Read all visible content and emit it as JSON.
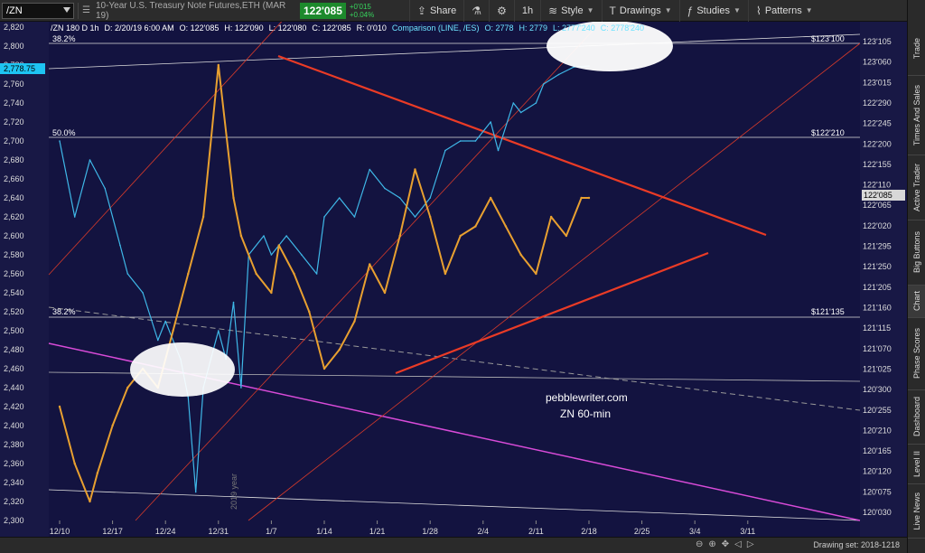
{
  "toolbar": {
    "symbol": "/ZN",
    "description": "10-Year U.S. Treasury Note Futures,ETH (MAR 19)",
    "last_price": "122'085",
    "change_abs": "+0'015",
    "change_pct": "+0.04%",
    "share_label": "Share",
    "interval_label": "1h",
    "style_label": "Style",
    "drawings_label": "Drawings",
    "studies_label": "Studies",
    "patterns_label": "Patterns"
  },
  "chart_header": {
    "symbol_line": "/ZN 180 D 1h",
    "date": "D: 2/20/19 6:00 AM",
    "open": "O: 122'085",
    "high": "H: 122'090",
    "low": "L: 122'080",
    "close": "C: 122'085",
    "range": "R: 0'010",
    "comparison": "Comparison (LINE, /ES)",
    "cmp_open": "O: 2778",
    "cmp_high": "H: 2779",
    "cmp_low": "L: 2777'240",
    "cmp_close": "C: 2778'240"
  },
  "annotations": {
    "watermark": "pebblewriter.com",
    "subtitle": "ZN 60-min",
    "year_marker": "2019 year",
    "fib_382_top": "38.2%",
    "fib_50": "50.0%",
    "fib_382_bottom": "38.2%",
    "level_top": "$123'100",
    "level_mid": "$122'210",
    "level_bottom": "$121'135",
    "current_left_price": "2,778.75",
    "current_right_price": "122'085"
  },
  "side_tabs": [
    "Trade",
    "Times And Sales",
    "Active Trader",
    "Big Buttons",
    "Chart",
    "Phase Scores",
    "Dashboard",
    "Level II",
    "Live News"
  ],
  "status": {
    "drawing_set": "Drawing set: 2018-1218"
  },
  "chart_data": {
    "type": "line",
    "title": "",
    "x_ticks": [
      "12/10",
      "12/17",
      "12/24",
      "12/31",
      "1/7",
      "1/14",
      "1/21",
      "1/28",
      "2/4",
      "2/11",
      "2/18",
      "2/25",
      "3/4",
      "3/11"
    ],
    "left_axis_ticks": [
      "2,820",
      "2,800",
      "2,780",
      "2,760",
      "2,740",
      "2,720",
      "2,700",
      "2,680",
      "2,660",
      "2,640",
      "2,620",
      "2,600",
      "2,580",
      "2,560",
      "2,540",
      "2,520",
      "2,500",
      "2,480",
      "2,460",
      "2,440",
      "2,420",
      "2,400",
      "2,380",
      "2,360",
      "2,340",
      "2,320",
      "2,300"
    ],
    "right_axis_ticks": [
      "123'105",
      "123'060",
      "123'015",
      "122'290",
      "122'245",
      "122'200",
      "122'155",
      "122'110",
      "122'065",
      "122'020",
      "121'295",
      "121'250",
      "121'205",
      "121'160",
      "121'115",
      "121'070",
      "121'025",
      "120'300",
      "120'255",
      "120'210",
      "120'165",
      "120'120",
      "120'075",
      "120'030"
    ],
    "left_ylim": [
      2300,
      2820
    ],
    "series": [
      {
        "name": "/ES",
        "color": "#3fb8e8",
        "x_day": [
          0,
          2,
          4,
          6,
          8,
          9,
          11,
          13,
          14,
          16,
          17,
          18,
          19,
          20,
          21,
          22,
          23,
          24,
          25,
          27,
          28,
          30,
          32,
          34,
          35,
          37,
          39,
          41,
          43,
          45,
          47,
          49,
          51,
          53,
          55,
          57,
          58,
          60,
          61,
          63,
          64,
          66,
          68,
          70
        ],
        "values": [
          2700,
          2620,
          2680,
          2650,
          2590,
          2560,
          2540,
          2490,
          2510,
          2470,
          2430,
          2330,
          2440,
          2470,
          2500,
          2470,
          2530,
          2440,
          2580,
          2600,
          2580,
          2600,
          2580,
          2560,
          2620,
          2640,
          2620,
          2670,
          2650,
          2640,
          2620,
          2640,
          2690,
          2700,
          2700,
          2720,
          2690,
          2740,
          2730,
          2740,
          2760,
          2770,
          2778,
          2779
        ]
      },
      {
        "name": "/ZN",
        "color": "#e8a030",
        "x_day": [
          0,
          2,
          4,
          5,
          7,
          9,
          11,
          13,
          15,
          17,
          19,
          21,
          23,
          24,
          26,
          28,
          29,
          31,
          33,
          35,
          37,
          39,
          41,
          43,
          45,
          47,
          49,
          51,
          53,
          55,
          57,
          59,
          61,
          63,
          65,
          67,
          69,
          70
        ],
        "values": [
          2420,
          2360,
          2320,
          2350,
          2400,
          2440,
          2460,
          2440,
          2500,
          2560,
          2620,
          2780,
          2640,
          2600,
          2560,
          2540,
          2590,
          2560,
          2520,
          2460,
          2480,
          2510,
          2570,
          2540,
          2600,
          2670,
          2620,
          2560,
          2600,
          2610,
          2640,
          2610,
          2580,
          2560,
          2620,
          2600,
          2640,
          2640
        ]
      }
    ]
  }
}
